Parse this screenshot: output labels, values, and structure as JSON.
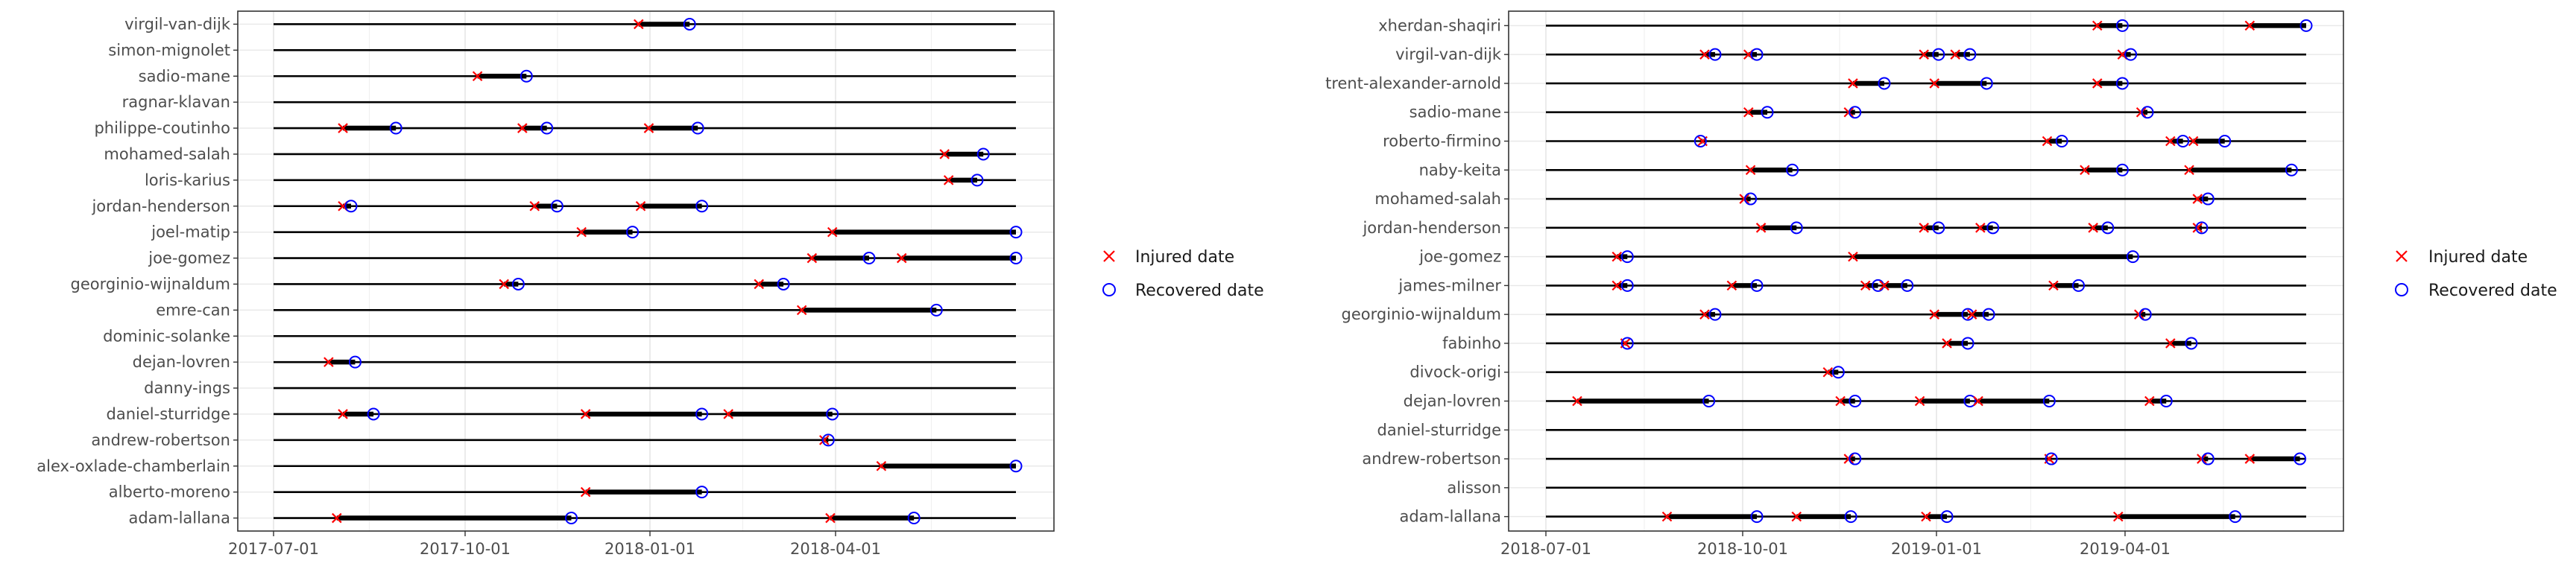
{
  "legend": {
    "injured_label": "Injured date",
    "recovered_label": "Recovered date",
    "injured_color": "#ff0000",
    "recovered_color": "#0000ff"
  },
  "chart_data": [
    {
      "type": "timeline",
      "x_ticks": [
        "2017-07-01",
        "2017-10-01",
        "2018-01-01",
        "2018-04-01"
      ],
      "xlim": [
        "2017-07-01",
        "2018-06-30"
      ],
      "legend_position": "right",
      "players": [
        {
          "name": "virgil-van-dijk",
          "injuries": [
            {
              "injured": "2017-12-27",
              "recovered": "2018-01-21"
            }
          ]
        },
        {
          "name": "simon-mignolet",
          "injuries": []
        },
        {
          "name": "sadio-mane",
          "injuries": [
            {
              "injured": "2017-10-09",
              "recovered": "2017-11-02"
            }
          ]
        },
        {
          "name": "ragnar-klavan",
          "injuries": []
        },
        {
          "name": "philippe-coutinho",
          "injuries": [
            {
              "injured": "2017-08-04",
              "recovered": "2017-08-30"
            },
            {
              "injured": "2017-10-31",
              "recovered": "2017-11-12"
            },
            {
              "injured": "2018-01-01",
              "recovered": "2018-01-25"
            }
          ]
        },
        {
          "name": "mohamed-salah",
          "injuries": [
            {
              "injured": "2018-05-26",
              "recovered": "2018-06-14"
            }
          ]
        },
        {
          "name": "loris-karius",
          "injuries": [
            {
              "injured": "2018-05-28",
              "recovered": "2018-06-11"
            }
          ]
        },
        {
          "name": "jordan-henderson",
          "injuries": [
            {
              "injured": "2017-08-04",
              "recovered": "2017-08-08"
            },
            {
              "injured": "2017-11-06",
              "recovered": "2017-11-17"
            },
            {
              "injured": "2017-12-28",
              "recovered": "2018-01-27"
            }
          ]
        },
        {
          "name": "joel-matip",
          "injuries": [
            {
              "injured": "2017-11-29",
              "recovered": "2017-12-24"
            },
            {
              "injured": "2018-04-01",
              "recovered": "2018-06-30"
            }
          ]
        },
        {
          "name": "joe-gomez",
          "injuries": [
            {
              "injured": "2018-03-22",
              "recovered": "2018-04-19"
            },
            {
              "injured": "2018-05-05",
              "recovered": "2018-06-30"
            }
          ]
        },
        {
          "name": "georginio-wijnaldum",
          "injuries": [
            {
              "injured": "2017-10-22",
              "recovered": "2017-10-29"
            },
            {
              "injured": "2018-02-24",
              "recovered": "2018-03-08"
            }
          ]
        },
        {
          "name": "emre-can",
          "injuries": [
            {
              "injured": "2018-03-17",
              "recovered": "2018-05-22"
            }
          ]
        },
        {
          "name": "dominic-solanke",
          "injuries": []
        },
        {
          "name": "dejan-lovren",
          "injuries": [
            {
              "injured": "2017-07-28",
              "recovered": "2017-08-10"
            }
          ]
        },
        {
          "name": "danny-ings",
          "injuries": []
        },
        {
          "name": "daniel-sturridge",
          "injuries": [
            {
              "injured": "2017-08-04",
              "recovered": "2017-08-19"
            },
            {
              "injured": "2017-12-01",
              "recovered": "2018-01-27"
            },
            {
              "injured": "2018-02-09",
              "recovered": "2018-04-01"
            }
          ]
        },
        {
          "name": "andrew-robertson",
          "injuries": [
            {
              "injured": "2018-03-28",
              "recovered": "2018-03-30"
            }
          ]
        },
        {
          "name": "alex-oxlade-chamberlain",
          "injuries": [
            {
              "injured": "2018-04-25",
              "recovered": "2018-06-30"
            }
          ]
        },
        {
          "name": "alberto-moreno",
          "injuries": [
            {
              "injured": "2017-12-01",
              "recovered": "2018-01-27"
            }
          ]
        },
        {
          "name": "adam-lallana",
          "injuries": [
            {
              "injured": "2017-08-01",
              "recovered": "2017-11-24"
            },
            {
              "injured": "2018-03-31",
              "recovered": "2018-05-11"
            }
          ]
        }
      ]
    },
    {
      "type": "timeline",
      "x_ticks": [
        "2018-07-01",
        "2018-10-01",
        "2019-01-01",
        "2019-04-01"
      ],
      "xlim": [
        "2018-07-01",
        "2019-06-30"
      ],
      "legend_position": "right",
      "players": [
        {
          "name": "xherdan-shaqiri",
          "injuries": [
            {
              "injured": "2019-03-22",
              "recovered": "2019-04-03"
            },
            {
              "injured": "2019-06-03",
              "recovered": "2019-06-30"
            }
          ]
        },
        {
          "name": "virgil-van-dijk",
          "injuries": [
            {
              "injured": "2018-09-15",
              "recovered": "2018-09-20"
            },
            {
              "injured": "2018-10-06",
              "recovered": "2018-10-10"
            },
            {
              "injured": "2018-12-29",
              "recovered": "2019-01-05"
            },
            {
              "injured": "2019-01-13",
              "recovered": "2019-01-20"
            },
            {
              "injured": "2019-04-03",
              "recovered": "2019-04-07"
            }
          ]
        },
        {
          "name": "trent-alexander-arnold",
          "injuries": [
            {
              "injured": "2018-11-25",
              "recovered": "2018-12-10"
            },
            {
              "injured": "2019-01-03",
              "recovered": "2019-01-28"
            },
            {
              "injured": "2019-03-22",
              "recovered": "2019-04-03"
            }
          ]
        },
        {
          "name": "sadio-mane",
          "injuries": [
            {
              "injured": "2018-10-06",
              "recovered": "2018-10-15"
            },
            {
              "injured": "2018-11-23",
              "recovered": "2018-11-26"
            },
            {
              "injured": "2019-04-12",
              "recovered": "2019-04-15"
            }
          ]
        },
        {
          "name": "roberto-firmino",
          "injuries": [
            {
              "injured": "2018-09-14",
              "recovered": "2018-09-13"
            },
            {
              "injured": "2019-02-26",
              "recovered": "2019-03-05"
            },
            {
              "injured": "2019-04-26",
              "recovered": "2019-05-02"
            },
            {
              "injured": "2019-05-07",
              "recovered": "2019-05-22"
            }
          ]
        },
        {
          "name": "naby-keita",
          "injuries": [
            {
              "injured": "2018-10-07",
              "recovered": "2018-10-27"
            },
            {
              "injured": "2019-03-16",
              "recovered": "2019-04-03"
            },
            {
              "injured": "2019-05-05",
              "recovered": "2019-06-23"
            }
          ]
        },
        {
          "name": "mohamed-salah",
          "injuries": [
            {
              "injured": "2018-10-04",
              "recovered": "2018-10-07"
            },
            {
              "injured": "2019-05-09",
              "recovered": "2019-05-14"
            }
          ]
        },
        {
          "name": "jordan-henderson",
          "injuries": [
            {
              "injured": "2018-10-12",
              "recovered": "2018-10-29"
            },
            {
              "injured": "2018-12-29",
              "recovered": "2019-01-05"
            },
            {
              "injured": "2019-01-25",
              "recovered": "2019-01-31"
            },
            {
              "injured": "2019-03-20",
              "recovered": "2019-03-27"
            },
            {
              "injured": "2019-05-09",
              "recovered": "2019-05-11"
            }
          ]
        },
        {
          "name": "joe-gomez",
          "injuries": [
            {
              "injured": "2018-08-04",
              "recovered": "2018-08-09"
            },
            {
              "injured": "2018-11-25",
              "recovered": "2019-04-08"
            }
          ]
        },
        {
          "name": "james-milner",
          "injuries": [
            {
              "injured": "2018-08-04",
              "recovered": "2018-08-09"
            },
            {
              "injured": "2018-09-28",
              "recovered": "2018-10-10"
            },
            {
              "injured": "2018-12-01",
              "recovered": "2018-12-07"
            },
            {
              "injured": "2018-12-10",
              "recovered": "2018-12-21"
            },
            {
              "injured": "2019-03-01",
              "recovered": "2019-03-13"
            }
          ]
        },
        {
          "name": "georginio-wijnaldum",
          "injuries": [
            {
              "injured": "2018-09-15",
              "recovered": "2018-09-20"
            },
            {
              "injured": "2019-01-03",
              "recovered": "2019-01-19"
            },
            {
              "injured": "2019-01-21",
              "recovered": "2019-01-29"
            },
            {
              "injured": "2019-04-11",
              "recovered": "2019-04-14"
            }
          ]
        },
        {
          "name": "fabinho",
          "injuries": [
            {
              "injured": "2018-08-08",
              "recovered": "2018-08-09"
            },
            {
              "injured": "2019-01-09",
              "recovered": "2019-01-19"
            },
            {
              "injured": "2019-04-26",
              "recovered": "2019-05-06"
            }
          ]
        },
        {
          "name": "divock-origi",
          "injuries": [
            {
              "injured": "2018-11-13",
              "recovered": "2018-11-18"
            }
          ]
        },
        {
          "name": "dejan-lovren",
          "injuries": [
            {
              "injured": "2018-07-16",
              "recovered": "2018-09-17"
            },
            {
              "injured": "2018-11-19",
              "recovered": "2018-11-26"
            },
            {
              "injured": "2018-12-27",
              "recovered": "2019-01-20"
            },
            {
              "injured": "2019-01-24",
              "recovered": "2019-02-27"
            },
            {
              "injured": "2019-04-16",
              "recovered": "2019-04-24"
            }
          ]
        },
        {
          "name": "daniel-sturridge",
          "injuries": []
        },
        {
          "name": "andrew-robertson",
          "injuries": [
            {
              "injured": "2018-11-23",
              "recovered": "2018-11-26"
            },
            {
              "injured": "2019-02-27",
              "recovered": "2019-02-28"
            },
            {
              "injured": "2019-05-11",
              "recovered": "2019-05-14"
            },
            {
              "injured": "2019-06-03",
              "recovered": "2019-06-27"
            }
          ]
        },
        {
          "name": "alisson",
          "injuries": []
        },
        {
          "name": "adam-lallana",
          "injuries": [
            {
              "injured": "2018-08-28",
              "recovered": "2018-10-10"
            },
            {
              "injured": "2018-10-29",
              "recovered": "2018-11-24"
            },
            {
              "injured": "2018-12-30",
              "recovered": "2019-01-09"
            },
            {
              "injured": "2019-04-01",
              "recovered": "2019-05-27"
            }
          ]
        }
      ]
    }
  ]
}
